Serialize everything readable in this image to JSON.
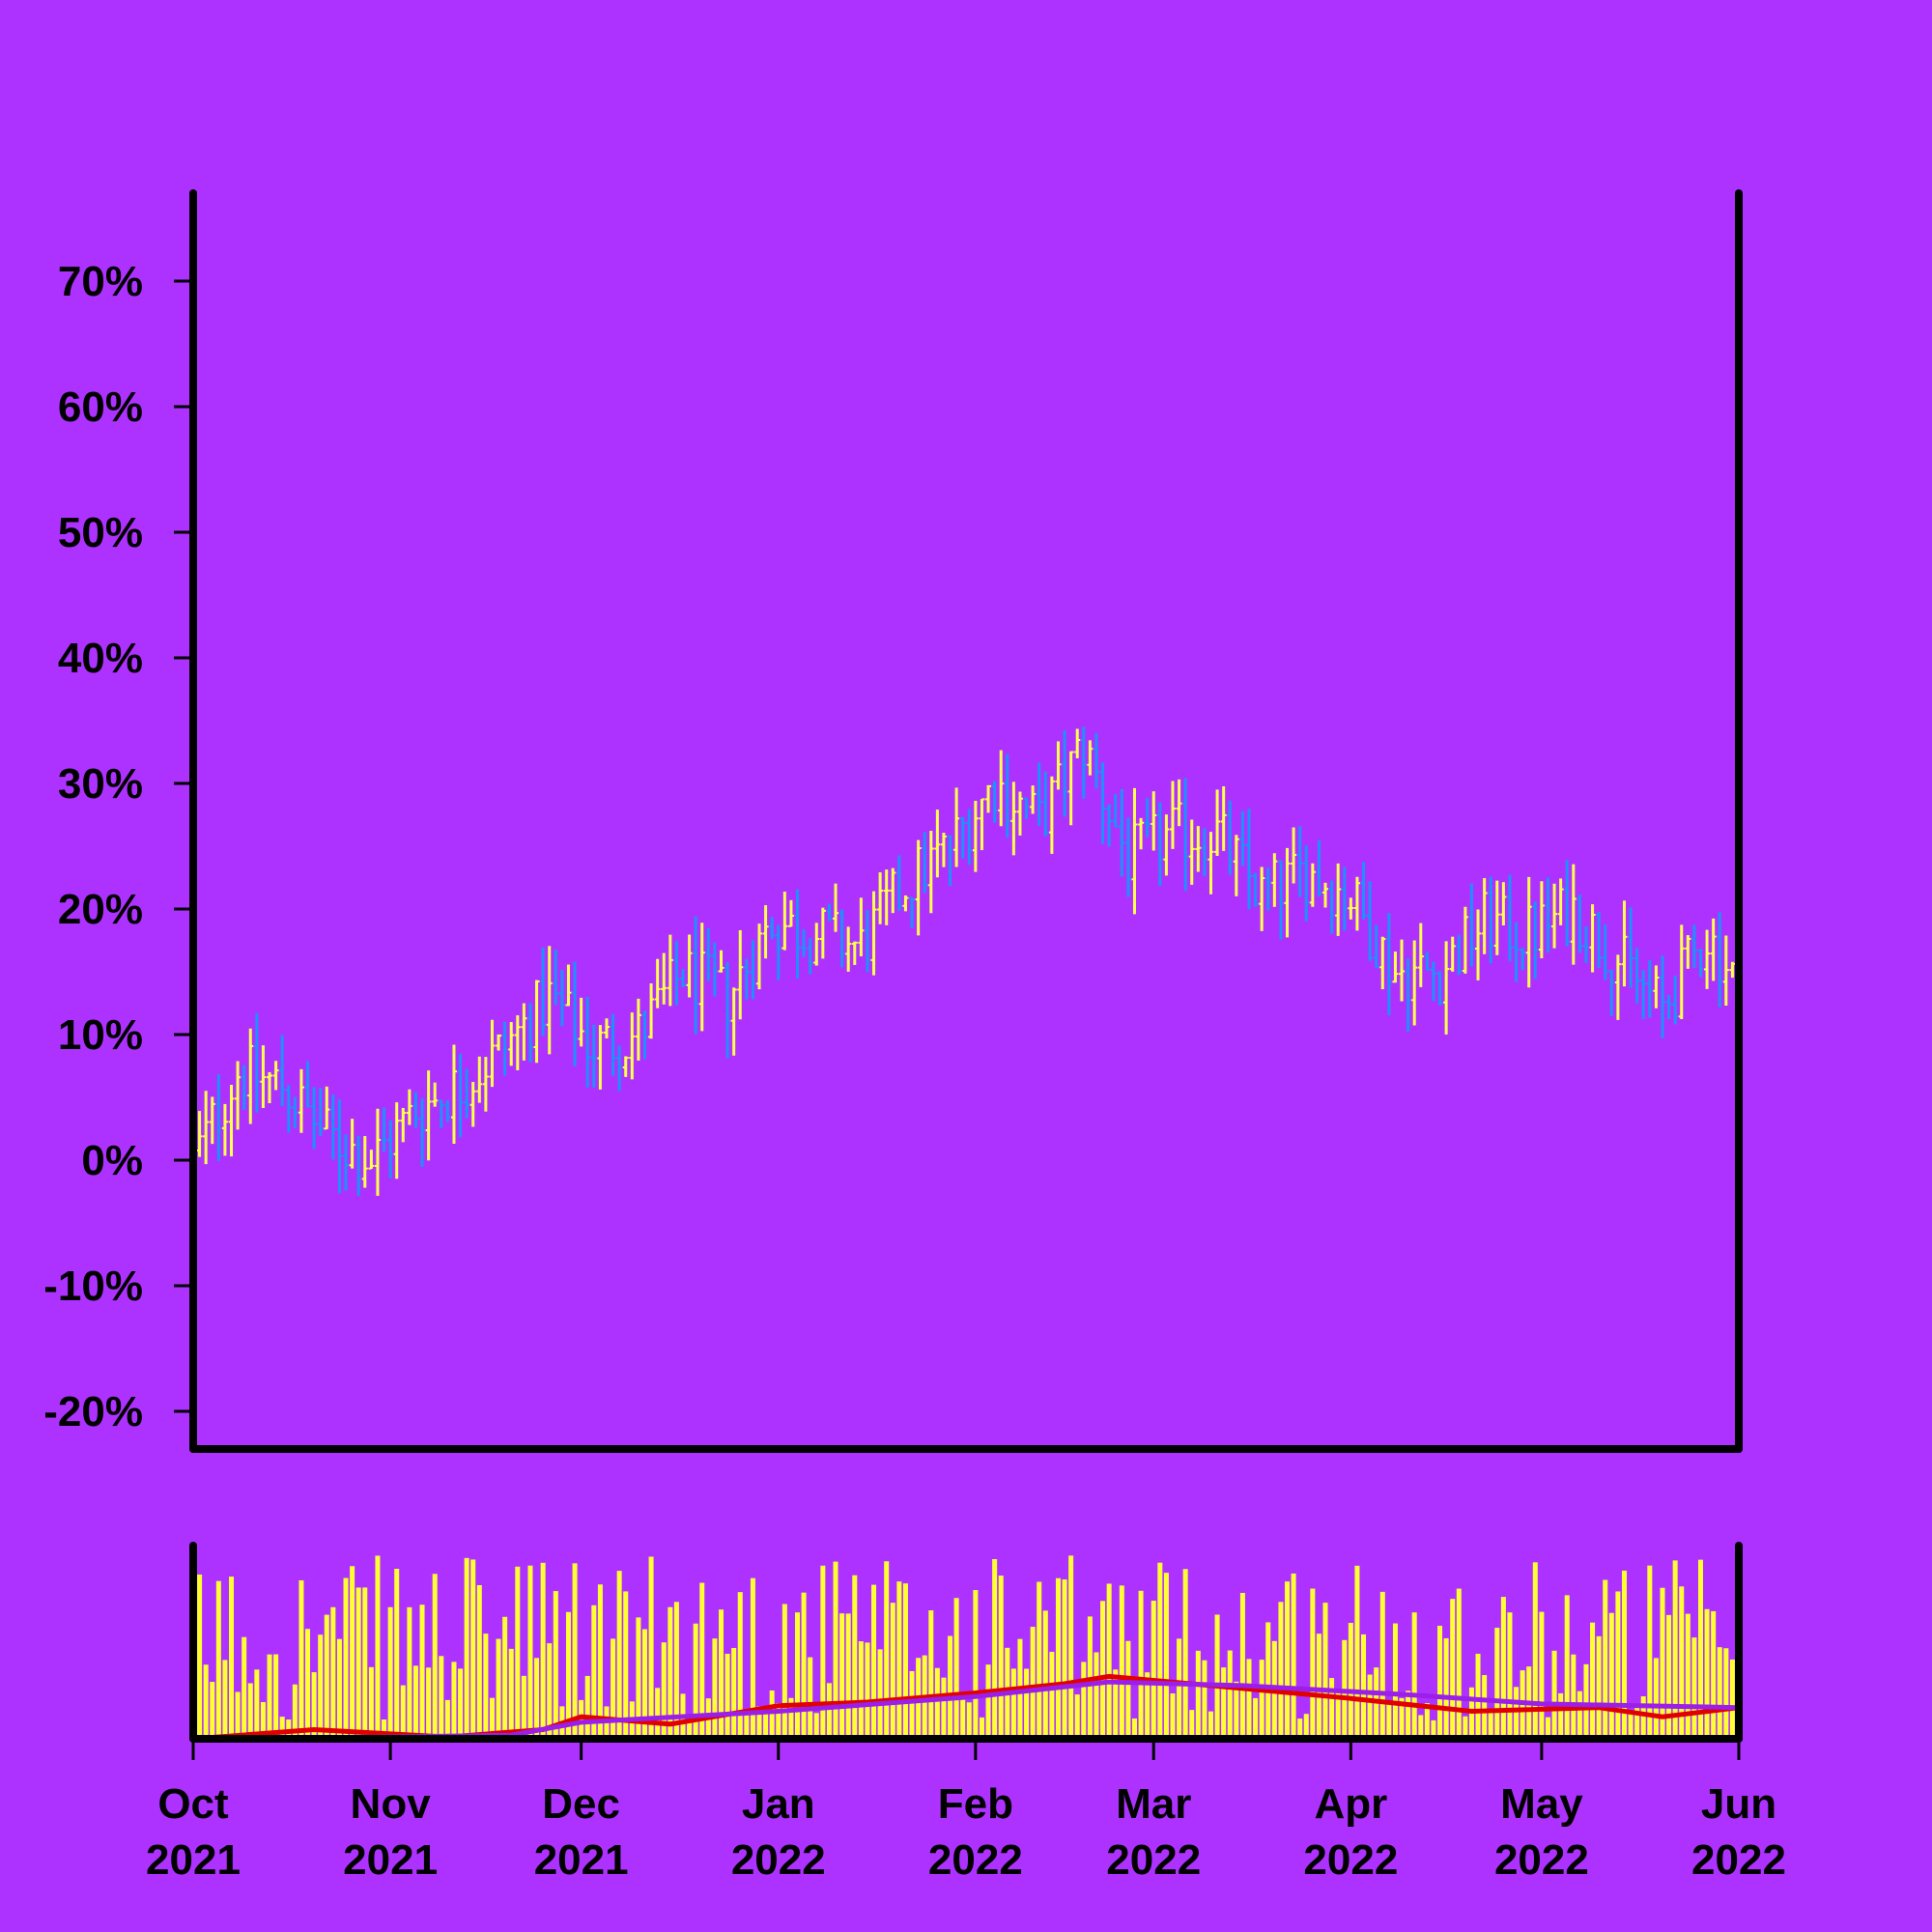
{
  "chart_data": {
    "type": "ohlc",
    "title": "",
    "xlabel": "",
    "ylabel": "",
    "background": "#ae32ff",
    "colors": {
      "up": "#ffff4d",
      "down": "#1e90ff",
      "volume": "#ffff33",
      "ma_fast": "#e00000",
      "ma_slow": "#9b1fe8",
      "axis": "#000000"
    },
    "x_range": [
      "2021-10-01",
      "2022-06-01"
    ],
    "ylim": [
      -0.23,
      0.77
    ],
    "y_ticks": [
      {
        "value": -0.2,
        "label": "-20%"
      },
      {
        "value": -0.1,
        "label": "-10%"
      },
      {
        "value": 0.0,
        "label": "0%"
      },
      {
        "value": 0.1,
        "label": "10%"
      },
      {
        "value": 0.2,
        "label": "20%"
      },
      {
        "value": 0.3,
        "label": "30%"
      },
      {
        "value": 0.4,
        "label": "40%"
      },
      {
        "value": 0.5,
        "label": "50%"
      },
      {
        "value": 0.6,
        "label": "60%"
      },
      {
        "value": 0.7,
        "label": "70%"
      }
    ],
    "x_ticks": [
      {
        "date": "2021-10-01",
        "month": "Oct",
        "year": "2021"
      },
      {
        "date": "2021-11-01",
        "month": "Nov",
        "year": "2021"
      },
      {
        "date": "2021-12-01",
        "month": "Dec",
        "year": "2021"
      },
      {
        "date": "2022-01-01",
        "month": "Jan",
        "year": "2022"
      },
      {
        "date": "2022-02-01",
        "month": "Feb",
        "year": "2022"
      },
      {
        "date": "2022-03-01",
        "month": "Mar",
        "year": "2022"
      },
      {
        "date": "2022-04-01",
        "month": "Apr",
        "year": "2022"
      },
      {
        "date": "2022-05-01",
        "month": "May",
        "year": "2022"
      },
      {
        "date": "2022-06-01",
        "month": "Jun",
        "year": "2022"
      }
    ],
    "close_series": [
      {
        "date": "2021-10-01",
        "close": 0.0
      },
      {
        "date": "2021-10-08",
        "close": 0.07
      },
      {
        "date": "2021-10-15",
        "close": 0.06
      },
      {
        "date": "2021-10-22",
        "close": 0.02
      },
      {
        "date": "2021-10-29",
        "close": 0.0
      },
      {
        "date": "2021-11-05",
        "close": 0.04
      },
      {
        "date": "2021-11-12",
        "close": 0.06
      },
      {
        "date": "2021-11-19",
        "close": 0.09
      },
      {
        "date": "2021-11-26",
        "close": 0.13
      },
      {
        "date": "2021-12-03",
        "close": 0.09
      },
      {
        "date": "2021-12-10",
        "close": 0.1
      },
      {
        "date": "2021-12-17",
        "close": 0.15
      },
      {
        "date": "2021-12-24",
        "close": 0.13
      },
      {
        "date": "2021-12-31",
        "close": 0.19
      },
      {
        "date": "2022-01-07",
        "close": 0.18
      },
      {
        "date": "2022-01-14",
        "close": 0.17
      },
      {
        "date": "2022-01-21",
        "close": 0.22
      },
      {
        "date": "2022-01-28",
        "close": 0.25
      },
      {
        "date": "2022-02-04",
        "close": 0.3
      },
      {
        "date": "2022-02-11",
        "close": 0.27
      },
      {
        "date": "2022-02-18",
        "close": 0.33
      },
      {
        "date": "2022-02-25",
        "close": 0.24
      },
      {
        "date": "2022-03-04",
        "close": 0.26
      },
      {
        "date": "2022-03-11",
        "close": 0.26
      },
      {
        "date": "2022-03-18",
        "close": 0.21
      },
      {
        "date": "2022-03-25",
        "close": 0.23
      },
      {
        "date": "2022-04-01",
        "close": 0.21
      },
      {
        "date": "2022-04-08",
        "close": 0.15
      },
      {
        "date": "2022-04-15",
        "close": 0.15
      },
      {
        "date": "2022-04-22",
        "close": 0.19
      },
      {
        "date": "2022-04-29",
        "close": 0.18
      },
      {
        "date": "2022-05-06",
        "close": 0.2
      },
      {
        "date": "2022-05-13",
        "close": 0.16
      },
      {
        "date": "2022-05-20",
        "close": 0.12
      },
      {
        "date": "2022-05-27",
        "close": 0.18
      },
      {
        "date": "2022-06-01",
        "close": 0.14
      }
    ],
    "volume_panel": {
      "type": "bar",
      "color": "#ffff33",
      "ylim": [
        0,
        1.0
      ],
      "moving_averages": [
        {
          "color": "#e00000",
          "points": [
            {
              "date": "2021-10-01",
              "value": 0.0
            },
            {
              "date": "2021-10-20",
              "value": 0.05
            },
            {
              "date": "2021-11-10",
              "value": 0.01
            },
            {
              "date": "2021-11-25",
              "value": 0.05
            },
            {
              "date": "2021-12-01",
              "value": 0.12
            },
            {
              "date": "2021-12-15",
              "value": 0.08
            },
            {
              "date": "2022-01-01",
              "value": 0.18
            },
            {
              "date": "2022-01-15",
              "value": 0.2
            },
            {
              "date": "2022-02-01",
              "value": 0.25
            },
            {
              "date": "2022-02-15",
              "value": 0.3
            },
            {
              "date": "2022-02-22",
              "value": 0.34
            },
            {
              "date": "2022-03-10",
              "value": 0.29
            },
            {
              "date": "2022-04-01",
              "value": 0.22
            },
            {
              "date": "2022-04-20",
              "value": 0.15
            },
            {
              "date": "2022-05-10",
              "value": 0.17
            },
            {
              "date": "2022-05-20",
              "value": 0.12
            },
            {
              "date": "2022-06-01",
              "value": 0.17
            }
          ]
        },
        {
          "color": "#9b1fe8",
          "points": [
            {
              "date": "2021-10-01",
              "value": 0.0
            },
            {
              "date": "2021-11-01",
              "value": 0.01
            },
            {
              "date": "2021-11-20",
              "value": 0.02
            },
            {
              "date": "2021-12-01",
              "value": 0.09
            },
            {
              "date": "2022-01-01",
              "value": 0.15
            },
            {
              "date": "2022-02-01",
              "value": 0.23
            },
            {
              "date": "2022-02-22",
              "value": 0.31
            },
            {
              "date": "2022-03-15",
              "value": 0.29
            },
            {
              "date": "2022-04-10",
              "value": 0.24
            },
            {
              "date": "2022-05-01",
              "value": 0.19
            },
            {
              "date": "2022-06-01",
              "value": 0.17
            }
          ]
        }
      ]
    }
  }
}
